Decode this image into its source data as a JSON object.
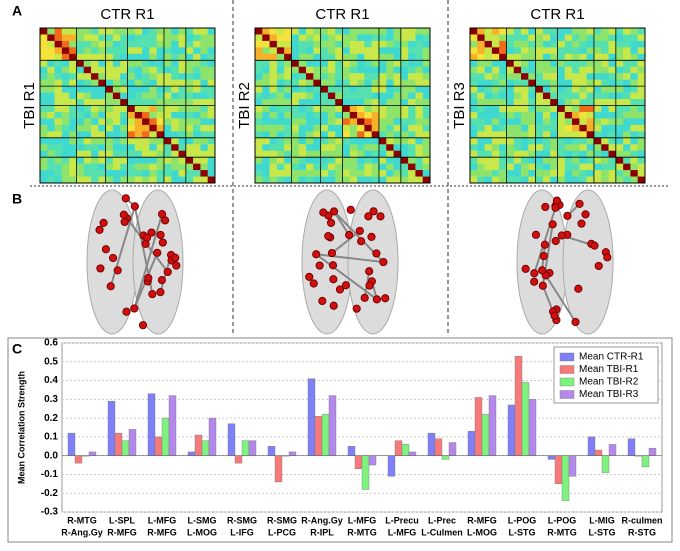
{
  "panel_labels": [
    "A",
    "B",
    "C"
  ],
  "matrices": [
    {
      "title": "CTR R1",
      "side_label": "TBI R1"
    },
    {
      "title": "CTR R1",
      "side_label": "TBI R2"
    },
    {
      "title": "CTR R1",
      "side_label": "TBI R3"
    }
  ],
  "chart_data": {
    "type": "bar",
    "ylabel": "Mean Correlation Strength",
    "categories": [
      [
        "R-MTG",
        "R-Ang.Gy"
      ],
      [
        "L-SPL",
        "R-MFG"
      ],
      [
        "L-MFG",
        "R-MFG"
      ],
      [
        "L-SMG",
        "L-MOG"
      ],
      [
        "R-SMG",
        "L-IFG"
      ],
      [
        "R-SMG",
        "L-PCG"
      ],
      [
        "R-Ang.Gy",
        "R-IPL"
      ],
      [
        "L-MFG",
        "R-MTG"
      ],
      [
        "L-Precu",
        "L-MFG"
      ],
      [
        "L-Prec",
        "L-Culmen"
      ],
      [
        "R-MFG",
        "L-MOG"
      ],
      [
        "L-POG",
        "L-STG"
      ],
      [
        "L-POG",
        "R-MTG"
      ],
      [
        "L-MIG",
        "L-STG"
      ],
      [
        "R-culmen",
        "R-STG"
      ]
    ],
    "series": [
      {
        "name": "Mean CTR-R1",
        "color": "#7f7ff7",
        "values": [
          0.12,
          0.29,
          0.33,
          0.02,
          0.17,
          0.05,
          0.41,
          0.05,
          -0.11,
          0.12,
          0.13,
          0.27,
          -0.02,
          0.1,
          0.09
        ]
      },
      {
        "name": "Mean TBI-R1",
        "color": "#f77a7a",
        "values": [
          -0.04,
          0.12,
          0.1,
          0.11,
          -0.04,
          -0.14,
          0.21,
          -0.07,
          0.08,
          0.09,
          0.31,
          0.53,
          -0.15,
          0.03,
          0.0
        ]
      },
      {
        "name": "Mean TBI-R2",
        "color": "#7df27d",
        "values": [
          0.0,
          0.08,
          0.2,
          0.08,
          0.08,
          0.0,
          0.22,
          -0.18,
          0.06,
          -0.02,
          0.22,
          0.39,
          -0.24,
          -0.09,
          -0.06
        ]
      },
      {
        "name": "Mean TBI-R3",
        "color": "#b487ea",
        "values": [
          0.02,
          0.14,
          0.32,
          0.2,
          0.08,
          0.02,
          0.32,
          -0.05,
          0.02,
          0.07,
          0.32,
          0.3,
          -0.11,
          0.06,
          0.04
        ]
      }
    ],
    "ylim": [
      -0.3,
      0.6
    ],
    "yticks": [
      -0.3,
      -0.2,
      -0.1,
      {
        "value": 0,
        "label": "0.0"
      },
      0.1,
      0.2,
      0.3,
      0.4,
      0.5,
      0.6
    ],
    "grid": true,
    "legend": "upper right"
  }
}
